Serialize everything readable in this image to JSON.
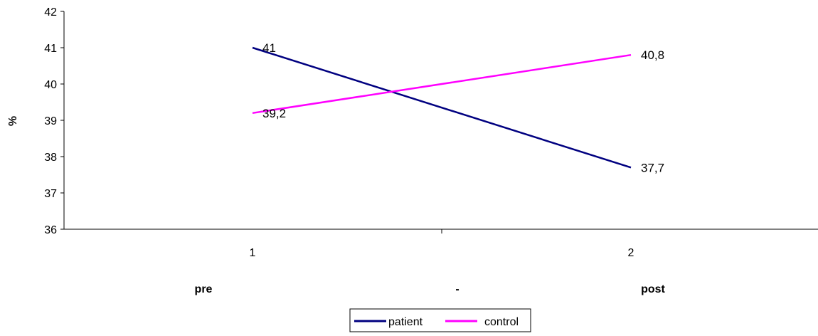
{
  "chart_data": {
    "type": "line",
    "x": [
      "1",
      "2"
    ],
    "series": [
      {
        "name": "patient",
        "values": [
          41,
          37.7
        ],
        "labels": [
          "41",
          "37,7"
        ],
        "color": "#000080"
      },
      {
        "name": "control",
        "values": [
          39.2,
          40.8
        ],
        "labels": [
          "39,2",
          "40,8"
        ],
        "color": "#ff00ff"
      }
    ],
    "ylabel": "%",
    "ylim": [
      36,
      42
    ],
    "yticks": [
      "36",
      "37",
      "38",
      "39",
      "40",
      "41",
      "42"
    ],
    "xlabels": [
      "pre",
      "-",
      "post"
    ],
    "grid": false,
    "legend": "bottom-center"
  }
}
